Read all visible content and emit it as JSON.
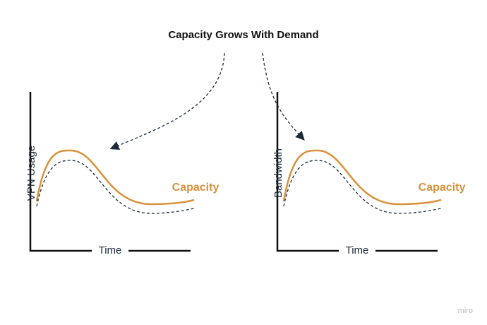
{
  "title": "Capacity Grows With Demand",
  "panels": [
    {
      "y_label": "VPN Usage",
      "x_label": "Time",
      "curve_label": "Capacity"
    },
    {
      "y_label": "Bandwidth",
      "x_label": "Time",
      "curve_label": "Capacity"
    }
  ],
  "watermark": "miro"
}
